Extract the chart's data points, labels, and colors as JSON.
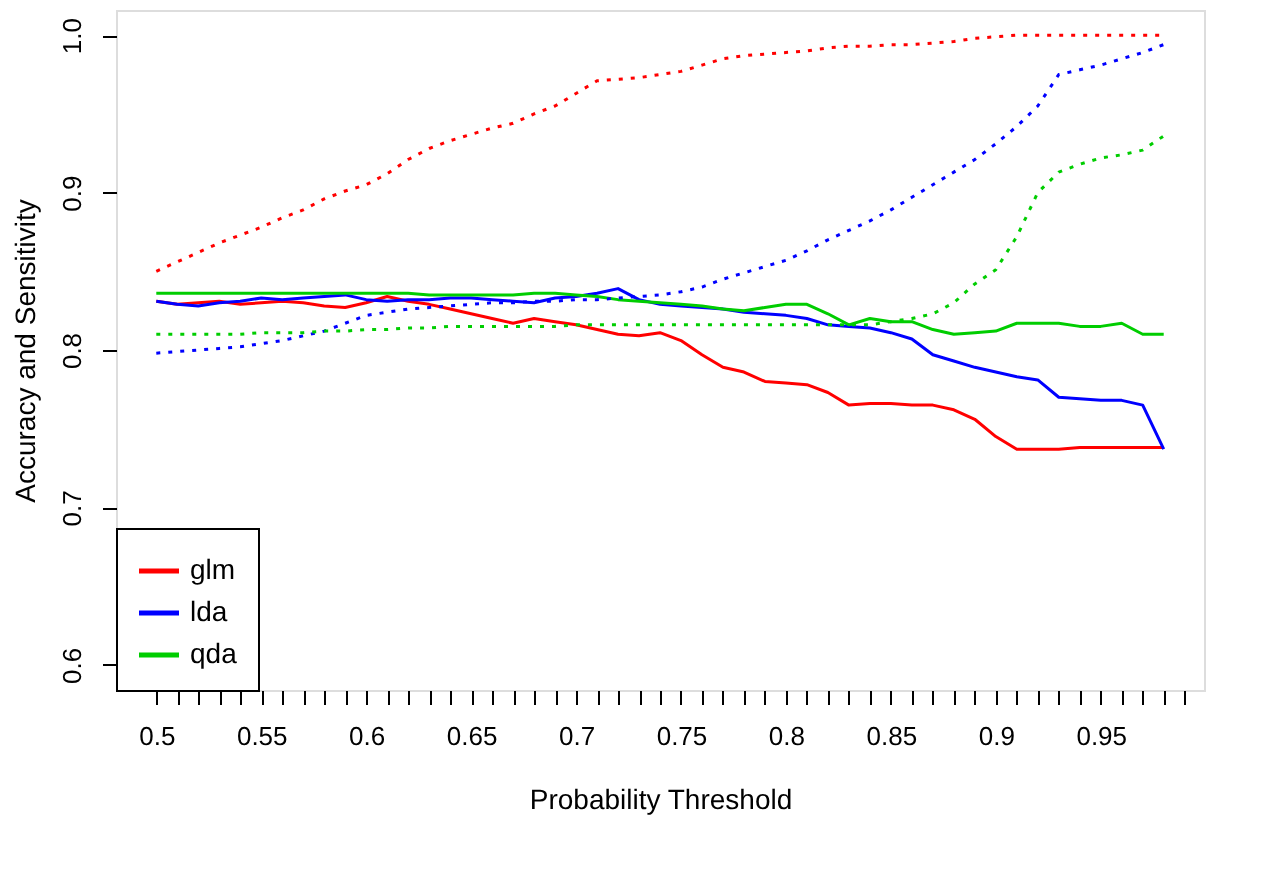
{
  "chart_data": {
    "type": "line",
    "xlabel": "Probability Threshold",
    "ylabel": "Accuracy and Sensitivity",
    "x": [
      0.5,
      0.51,
      0.52,
      0.53,
      0.54,
      0.55,
      0.56,
      0.57,
      0.58,
      0.59,
      0.6,
      0.61,
      0.62,
      0.63,
      0.64,
      0.65,
      0.66,
      0.67,
      0.68,
      0.69,
      0.7,
      0.71,
      0.72,
      0.73,
      0.74,
      0.75,
      0.76,
      0.77,
      0.78,
      0.79,
      0.8,
      0.81,
      0.82,
      0.83,
      0.84,
      0.85,
      0.86,
      0.87,
      0.88,
      0.89,
      0.9,
      0.91,
      0.92,
      0.93,
      0.94,
      0.95,
      0.96,
      0.97,
      0.98
    ],
    "series": [
      {
        "name": "glm",
        "color": "#ff0000",
        "line_style": "solid",
        "values": [
          0.831,
          0.829,
          0.83,
          0.831,
          0.829,
          0.83,
          0.831,
          0.83,
          0.828,
          0.827,
          0.83,
          0.834,
          0.831,
          0.829,
          0.826,
          0.823,
          0.82,
          0.817,
          0.82,
          0.818,
          0.816,
          0.813,
          0.81,
          0.809,
          0.811,
          0.806,
          0.797,
          0.789,
          0.786,
          0.78,
          0.779,
          0.778,
          0.773,
          0.765,
          0.766,
          0.766,
          0.765,
          0.765,
          0.762,
          0.756,
          0.745,
          0.737,
          0.737,
          0.737,
          0.738,
          0.738,
          0.738,
          0.738,
          0.738
        ]
      },
      {
        "name": "lda",
        "color": "#0000ff",
        "line_style": "solid",
        "values": [
          0.831,
          0.829,
          0.828,
          0.83,
          0.831,
          0.833,
          0.832,
          0.833,
          0.834,
          0.835,
          0.832,
          0.831,
          0.832,
          0.832,
          0.833,
          0.833,
          0.832,
          0.831,
          0.83,
          0.833,
          0.834,
          0.836,
          0.839,
          0.832,
          0.829,
          0.828,
          0.827,
          0.826,
          0.824,
          0.823,
          0.822,
          0.82,
          0.816,
          0.815,
          0.814,
          0.811,
          0.807,
          0.797,
          0.793,
          0.789,
          0.786,
          0.783,
          0.781,
          0.77,
          0.769,
          0.768,
          0.768,
          0.765,
          0.737
        ]
      },
      {
        "name": "qda",
        "color": "#00cd00",
        "line_style": "solid",
        "values": [
          0.836,
          0.836,
          0.836,
          0.836,
          0.836,
          0.836,
          0.836,
          0.836,
          0.836,
          0.836,
          0.836,
          0.836,
          0.836,
          0.835,
          0.835,
          0.835,
          0.835,
          0.835,
          0.836,
          0.836,
          0.835,
          0.834,
          0.832,
          0.831,
          0.83,
          0.829,
          0.828,
          0.826,
          0.825,
          0.827,
          0.829,
          0.829,
          0.823,
          0.816,
          0.82,
          0.818,
          0.818,
          0.813,
          0.81,
          0.811,
          0.812,
          0.817,
          0.817,
          0.817,
          0.815,
          0.815,
          0.817,
          0.81,
          0.81
        ]
      },
      {
        "color": "#ff0000",
        "line_style": "dotted",
        "values": [
          0.85,
          0.856,
          0.862,
          0.868,
          0.873,
          0.878,
          0.884,
          0.889,
          0.896,
          0.901,
          0.905,
          0.912,
          0.921,
          0.928,
          0.933,
          0.937,
          0.941,
          0.944,
          0.95,
          0.955,
          0.963,
          0.971,
          0.972,
          0.973,
          0.975,
          0.977,
          0.981,
          0.985,
          0.987,
          0.988,
          0.989,
          0.99,
          0.992,
          0.993,
          0.993,
          0.994,
          0.994,
          0.995,
          0.996,
          0.998,
          0.999,
          1.0,
          1.0,
          1.0,
          1.0,
          1.0,
          1.0,
          1.0,
          1.0
        ]
      },
      {
        "color": "#0000ff",
        "line_style": "dotted",
        "values": [
          0.798,
          0.799,
          0.8,
          0.801,
          0.802,
          0.804,
          0.806,
          0.809,
          0.812,
          0.817,
          0.822,
          0.824,
          0.826,
          0.827,
          0.828,
          0.829,
          0.83,
          0.83,
          0.831,
          0.831,
          0.832,
          0.832,
          0.833,
          0.834,
          0.835,
          0.837,
          0.84,
          0.845,
          0.849,
          0.853,
          0.857,
          0.863,
          0.87,
          0.876,
          0.882,
          0.889,
          0.897,
          0.905,
          0.913,
          0.921,
          0.931,
          0.942,
          0.955,
          0.975,
          0.978,
          0.981,
          0.985,
          0.989,
          0.994
        ]
      },
      {
        "color": "#00cd00",
        "line_style": "dotted",
        "values": [
          0.81,
          0.81,
          0.81,
          0.81,
          0.81,
          0.811,
          0.811,
          0.811,
          0.812,
          0.812,
          0.813,
          0.813,
          0.814,
          0.814,
          0.815,
          0.815,
          0.815,
          0.815,
          0.815,
          0.815,
          0.816,
          0.816,
          0.816,
          0.816,
          0.816,
          0.816,
          0.816,
          0.816,
          0.816,
          0.816,
          0.816,
          0.816,
          0.816,
          0.816,
          0.816,
          0.818,
          0.82,
          0.823,
          0.83,
          0.842,
          0.851,
          0.872,
          0.9,
          0.913,
          0.918,
          0.922,
          0.924,
          0.927,
          0.936
        ]
      }
    ],
    "xlim": [
      0.4808,
      0.9992
    ],
    "xticks": [
      0.5,
      {
        "value": 0.51,
        "label": null
      },
      {
        "value": 0.52,
        "label": null
      },
      {
        "value": 0.53,
        "label": null
      },
      {
        "value": 0.54,
        "label": null
      },
      0.55,
      {
        "value": 0.56,
        "label": null
      },
      {
        "value": 0.57,
        "label": null
      },
      {
        "value": 0.58,
        "label": null
      },
      {
        "value": 0.59,
        "label": null
      },
      0.6,
      {
        "value": 0.61,
        "label": null
      },
      {
        "value": 0.62,
        "label": null
      },
      {
        "value": 0.63,
        "label": null
      },
      {
        "value": 0.64,
        "label": null
      },
      0.65,
      {
        "value": 0.66,
        "label": null
      },
      {
        "value": 0.67,
        "label": null
      },
      {
        "value": 0.68,
        "label": null
      },
      {
        "value": 0.69,
        "label": null
      },
      0.7,
      {
        "value": 0.71,
        "label": null
      },
      {
        "value": 0.72,
        "label": null
      },
      {
        "value": 0.73,
        "label": null
      },
      {
        "value": 0.74,
        "label": null
      },
      0.75,
      {
        "value": 0.76,
        "label": null
      },
      {
        "value": 0.77,
        "label": null
      },
      {
        "value": 0.78,
        "label": null
      },
      {
        "value": 0.79,
        "label": null
      },
      0.8,
      {
        "value": 0.81,
        "label": null
      },
      {
        "value": 0.82,
        "label": null
      },
      {
        "value": 0.83,
        "label": null
      },
      {
        "value": 0.84,
        "label": null
      },
      0.85,
      {
        "value": 0.86,
        "label": null
      },
      {
        "value": 0.87,
        "label": null
      },
      {
        "value": 0.88,
        "label": null
      },
      {
        "value": 0.89,
        "label": null
      },
      0.9,
      {
        "value": 0.91,
        "label": null
      },
      {
        "value": 0.92,
        "label": null
      },
      {
        "value": 0.93,
        "label": null
      },
      {
        "value": 0.94,
        "label": null
      },
      0.95,
      {
        "value": 0.96,
        "label": null
      },
      {
        "value": 0.97,
        "label": null
      },
      {
        "value": 0.98,
        "label": null
      },
      {
        "value": 0.99,
        "label": null
      }
    ],
    "ylim": [
      0.584,
      1.016
    ],
    "yticks": [
      0.6,
      0.7,
      0.8,
      0.9,
      {
        "value": 1.0,
        "label": "1.0"
      }
    ],
    "grid": false,
    "legend": "bottom left",
    "marker": "none"
  }
}
